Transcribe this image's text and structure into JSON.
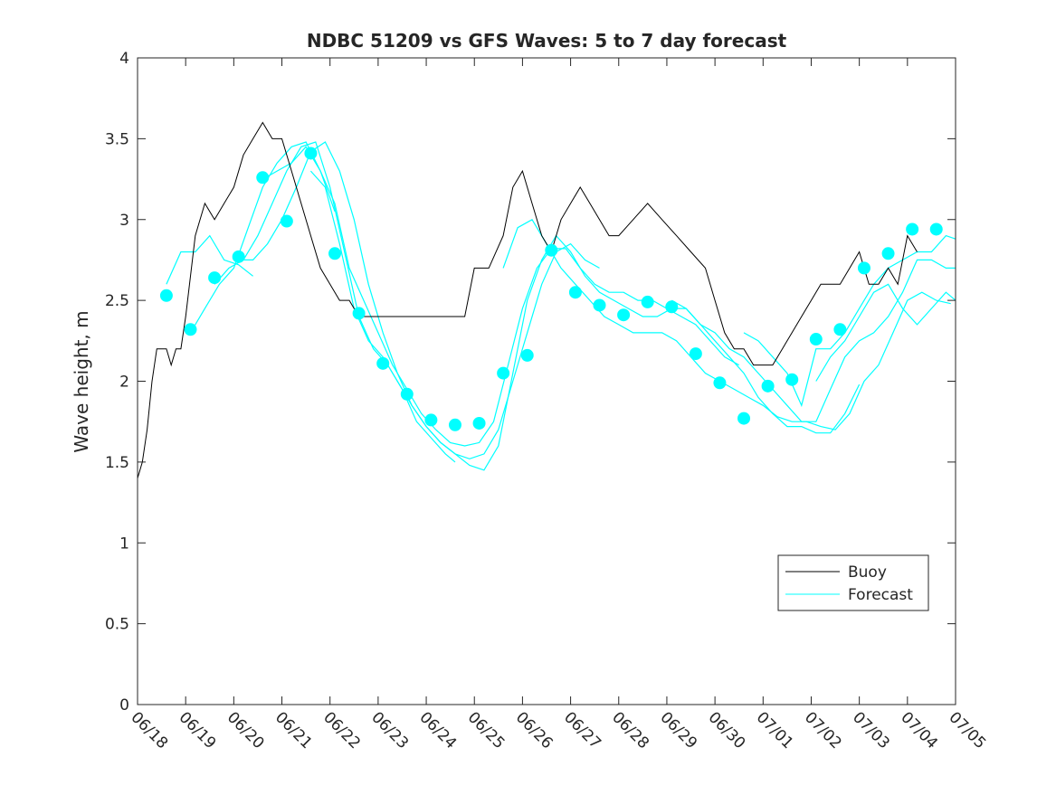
{
  "chart_data": {
    "type": "line",
    "title": "NDBC 51209 vs GFS Waves: 5 to 7 day forecast",
    "xlabel": "",
    "ylabel": "Wave height, m",
    "xlim": [
      0,
      17
    ],
    "ylim": [
      0,
      4
    ],
    "x_ticks": [
      0,
      1,
      2,
      3,
      4,
      5,
      6,
      7,
      8,
      9,
      10,
      11,
      12,
      13,
      14,
      15,
      16,
      17
    ],
    "x_tick_labels": [
      "06/18",
      "06/19",
      "06/20",
      "06/21",
      "06/22",
      "06/23",
      "06/24",
      "06/25",
      "06/26",
      "06/27",
      "06/28",
      "06/29",
      "06/30",
      "07/01",
      "07/02",
      "07/03",
      "07/04",
      "07/05"
    ],
    "y_ticks": [
      0,
      0.5,
      1,
      1.5,
      2,
      2.5,
      3,
      3.5,
      4
    ],
    "y_tick_labels": [
      "0",
      "0.5",
      "1",
      "1.5",
      "2",
      "2.5",
      "3",
      "3.5",
      "4"
    ],
    "grid": false,
    "legend_position": "lower-right",
    "colors": {
      "buoy": "#000000",
      "forecast": "#00ffff",
      "axes": "#262626"
    },
    "series": [
      {
        "name": "Buoy",
        "key": "buoy",
        "x": [
          0,
          0.1,
          0.2,
          0.3,
          0.4,
          0.5,
          0.6,
          0.7,
          0.8,
          0.9,
          1.0,
          1.2,
          1.4,
          1.6,
          1.8,
          2.0,
          2.2,
          2.4,
          2.6,
          2.8,
          3.0,
          3.2,
          3.4,
          3.6,
          3.8,
          4.0,
          4.2,
          4.4,
          4.6,
          4.8,
          5.0,
          5.3,
          5.6,
          5.9,
          6.2,
          6.5,
          6.8,
          7.0,
          7.3,
          7.6,
          7.8,
          8.0,
          8.2,
          8.4,
          8.6,
          8.8,
          9.0,
          9.2,
          9.4,
          9.6,
          9.8,
          10.0,
          10.3,
          10.6,
          10.9,
          11.2,
          11.5,
          11.8,
          12.0,
          12.2,
          12.4,
          12.6,
          12.8,
          13.0,
          13.2,
          13.4,
          13.6,
          13.8,
          14.0,
          14.2,
          14.4,
          14.6,
          14.8,
          15.0,
          15.2,
          15.4,
          15.6,
          15.8,
          16.0,
          16.2
        ],
        "y": [
          1.4,
          1.5,
          1.7,
          2.0,
          2.2,
          2.2,
          2.2,
          2.1,
          2.2,
          2.2,
          2.4,
          2.9,
          3.1,
          3.0,
          3.1,
          3.2,
          3.4,
          3.5,
          3.6,
          3.5,
          3.5,
          3.3,
          3.1,
          2.9,
          2.7,
          2.6,
          2.5,
          2.5,
          2.4,
          2.4,
          2.4,
          2.4,
          2.4,
          2.4,
          2.4,
          2.4,
          2.4,
          2.7,
          2.7,
          2.9,
          3.2,
          3.3,
          3.1,
          2.9,
          2.8,
          3.0,
          3.1,
          3.2,
          3.1,
          3.0,
          2.9,
          2.9,
          3.0,
          3.1,
          3.0,
          2.9,
          2.8,
          2.7,
          2.5,
          2.3,
          2.2,
          2.2,
          2.1,
          2.1,
          2.1,
          2.2,
          2.3,
          2.4,
          2.5,
          2.6,
          2.6,
          2.6,
          2.7,
          2.8,
          2.6,
          2.6,
          2.7,
          2.6,
          2.9,
          2.8
        ]
      },
      {
        "name": "Forecast",
        "key": "forecast",
        "segments": [
          {
            "x": [
              0.6,
              0.9,
              1.2,
              1.5,
              1.8,
              2.1,
              2.4
            ],
            "y": [
              2.6,
              2.8,
              2.8,
              2.9,
              2.75,
              2.72,
              2.65
            ]
          },
          {
            "x": [
              1.1,
              1.4,
              1.7,
              2.0,
              2.3,
              2.6,
              2.9,
              3.2,
              3.5,
              3.8,
              4.1
            ],
            "y": [
              2.3,
              2.45,
              2.6,
              2.7,
              2.95,
              3.2,
              3.35,
              3.45,
              3.48,
              3.3,
              3.05
            ]
          },
          {
            "x": [
              1.6,
              1.9,
              2.2,
              2.5,
              2.8,
              3.1,
              3.4,
              3.7,
              4.0,
              4.3,
              4.6,
              4.9,
              5.2,
              5.5,
              5.8,
              6.1,
              6.4,
              6.6
            ],
            "y": [
              2.6,
              2.7,
              2.75,
              2.9,
              3.1,
              3.3,
              3.45,
              3.48,
              3.2,
              2.8,
              2.4,
              2.2,
              2.1,
              1.95,
              1.75,
              1.65,
              1.55,
              1.5
            ]
          },
          {
            "x": [
              2.1,
              2.4,
              2.7,
              3.0,
              3.3,
              3.6,
              3.9,
              4.2,
              4.5,
              4.8,
              5.1,
              5.4,
              5.7,
              6.0,
              6.3,
              6.6,
              6.9,
              7.2,
              7.5,
              7.8,
              8.1,
              8.4,
              8.7,
              9.0,
              9.3,
              9.6
            ],
            "y": [
              2.75,
              2.75,
              2.85,
              3.0,
              3.2,
              3.42,
              3.48,
              3.3,
              3.0,
              2.6,
              2.3,
              2.05,
              1.85,
              1.72,
              1.62,
              1.55,
              1.52,
              1.55,
              1.7,
              2.0,
              2.3,
              2.6,
              2.8,
              2.85,
              2.75,
              2.7
            ]
          },
          {
            "x": [
              2.6,
              2.9,
              3.2,
              3.5,
              3.8,
              4.1,
              4.4,
              4.7,
              5.0,
              5.3,
              5.6,
              5.9,
              6.2,
              6.5,
              6.8,
              7.1,
              7.4,
              7.7,
              8.0,
              8.3,
              8.6,
              8.9,
              9.2,
              9.5,
              9.8,
              10.1,
              10.4,
              10.7,
              11.0,
              11.3,
              11.6,
              11.9,
              12.2,
              12.5
            ],
            "y": [
              3.25,
              3.3,
              3.35,
              3.45,
              3.3,
              3.1,
              2.7,
              2.5,
              2.3,
              2.1,
              1.95,
              1.8,
              1.7,
              1.62,
              1.6,
              1.62,
              1.75,
              2.1,
              2.45,
              2.7,
              2.82,
              2.82,
              2.7,
              2.6,
              2.55,
              2.55,
              2.5,
              2.5,
              2.45,
              2.4,
              2.35,
              2.25,
              2.15,
              2.1
            ]
          },
          {
            "x": [
              3.6,
              3.9,
              4.2,
              4.5,
              4.8,
              5.1,
              5.4,
              5.7,
              6.0,
              6.3,
              6.6,
              6.9,
              7.2,
              7.5,
              7.8,
              8.1,
              8.4,
              8.7,
              9.0,
              9.3,
              9.6,
              9.9,
              10.2,
              10.5,
              10.8,
              11.1,
              11.4,
              11.7,
              12.0,
              12.3,
              12.6,
              12.9,
              13.2,
              13.5,
              13.8,
              14.1,
              14.4,
              14.7,
              15.0
            ],
            "y": [
              3.3,
              3.2,
              2.85,
              2.45,
              2.25,
              2.15,
              2.0,
              1.85,
              1.72,
              1.62,
              1.55,
              1.48,
              1.45,
              1.6,
              2.05,
              2.5,
              2.75,
              2.9,
              2.8,
              2.65,
              2.55,
              2.5,
              2.45,
              2.4,
              2.4,
              2.45,
              2.45,
              2.35,
              2.25,
              2.15,
              2.05,
              1.9,
              1.8,
              1.72,
              1.72,
              1.68,
              1.68,
              1.8,
              1.98
            ]
          },
          {
            "x": [
              7.6,
              7.9,
              8.2,
              8.5,
              8.8,
              9.1,
              9.4,
              9.7,
              10.0,
              10.3,
              10.6,
              10.9,
              11.2,
              11.5,
              11.8,
              12.1,
              12.4,
              12.7,
              13.0,
              13.3,
              13.6,
              13.9,
              14.2,
              14.5,
              14.8,
              15.1,
              15.4,
              15.7,
              16.0,
              16.3,
              16.6,
              16.9
            ],
            "y": [
              2.7,
              2.95,
              3.0,
              2.85,
              2.7,
              2.6,
              2.5,
              2.4,
              2.35,
              2.3,
              2.3,
              2.3,
              2.25,
              2.15,
              2.05,
              2.0,
              1.95,
              1.9,
              1.85,
              1.78,
              1.75,
              1.75,
              1.72,
              1.7,
              1.8,
              2.0,
              2.1,
              2.3,
              2.5,
              2.55,
              2.5,
              2.48
            ]
          },
          {
            "x": [
              11.1,
              11.4,
              11.7,
              12.0,
              12.3,
              12.6,
              12.9,
              13.2,
              13.5,
              13.8,
              14.1,
              14.4,
              14.7,
              15.0,
              15.3,
              15.6,
              15.9,
              16.2,
              16.5,
              16.8,
              17.0
            ],
            "y": [
              2.5,
              2.45,
              2.35,
              2.3,
              2.2,
              2.15,
              2.05,
              1.95,
              1.85,
              1.75,
              1.75,
              1.95,
              2.15,
              2.25,
              2.3,
              2.4,
              2.55,
              2.75,
              2.75,
              2.7,
              2.7
            ]
          },
          {
            "x": [
              12.6,
              12.9,
              13.2,
              13.5,
              13.8,
              14.1,
              14.4,
              14.7,
              15.0,
              15.3,
              15.6,
              15.9,
              16.2,
              16.5,
              16.8,
              17.0
            ],
            "y": [
              2.3,
              2.25,
              2.15,
              2.05,
              1.85,
              2.2,
              2.2,
              2.3,
              2.45,
              2.6,
              2.7,
              2.75,
              2.8,
              2.8,
              2.9,
              2.88
            ]
          },
          {
            "x": [
              14.1,
              14.4,
              14.7,
              15.0,
              15.3,
              15.6,
              15.9,
              16.2,
              16.5,
              16.8,
              17.0
            ],
            "y": [
              2.0,
              2.15,
              2.25,
              2.4,
              2.55,
              2.6,
              2.45,
              2.35,
              2.45,
              2.55,
              2.5
            ]
          }
        ],
        "markers": {
          "x": [
            0.6,
            1.1,
            1.6,
            2.1,
            2.6,
            3.1,
            3.6,
            4.1,
            4.6,
            5.1,
            5.6,
            6.1,
            6.6,
            7.1,
            7.6,
            8.1,
            8.6,
            9.1,
            9.6,
            10.1,
            10.6,
            11.1,
            11.6,
            12.1,
            12.6,
            13.1,
            13.6,
            14.1,
            14.6,
            15.1,
            15.6,
            16.1,
            16.6
          ],
          "y": [
            2.53,
            2.32,
            2.64,
            2.77,
            3.26,
            2.99,
            3.41,
            2.79,
            2.42,
            2.11,
            1.92,
            1.76,
            1.73,
            1.74,
            2.05,
            2.16,
            2.81,
            2.55,
            2.47,
            2.41,
            2.49,
            2.46,
            2.17,
            1.99,
            1.77,
            1.97,
            2.01,
            2.26,
            2.32,
            2.7,
            2.79,
            2.94,
            2.94
          ]
        }
      }
    ]
  },
  "legend": {
    "items": [
      {
        "label": "Buoy",
        "key": "buoy"
      },
      {
        "label": "Forecast",
        "key": "forecast"
      }
    ]
  }
}
